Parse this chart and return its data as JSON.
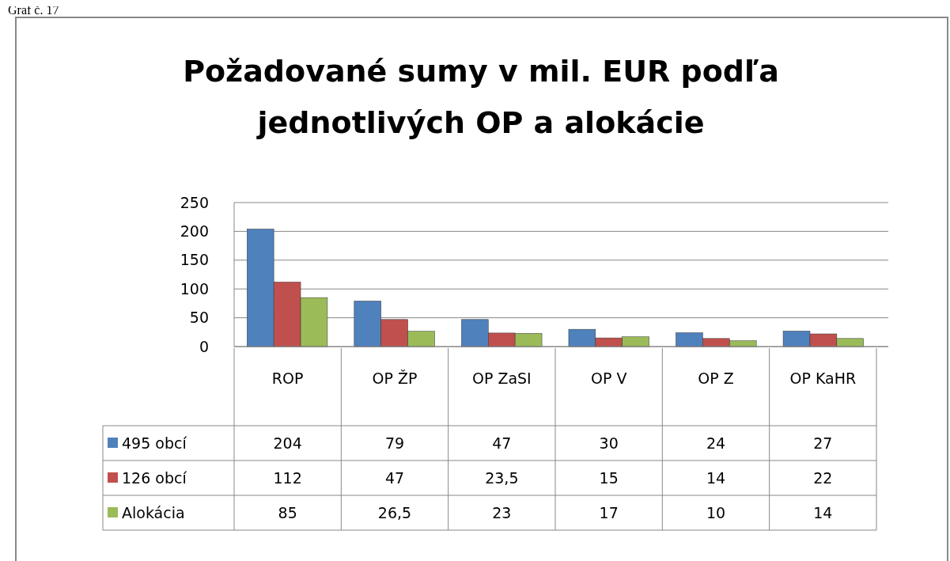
{
  "chart_data": {
    "type": "bar",
    "title": "Požadované sumy v mil. EUR podľa jednotlivých OP a alokácie",
    "annotations": [
      "Graf č. 17"
    ],
    "categories": [
      "ROP",
      "OP ŽP",
      "OP ZaSI",
      "OP V",
      "OP Z",
      "OP KaHR"
    ],
    "series": [
      {
        "name": "495 obcí",
        "color": "#4f81bd",
        "values": [
          204,
          79,
          47,
          30,
          24,
          27
        ],
        "value_labels": [
          "204",
          "79",
          "47",
          "30",
          "24",
          "27"
        ]
      },
      {
        "name": "126 obcí",
        "color": "#c0504d",
        "values": [
          112,
          47,
          23.5,
          15,
          14,
          22
        ],
        "value_labels": [
          "112",
          "47",
          "23,5",
          "15",
          "14",
          "22"
        ]
      },
      {
        "name": "Alokácia",
        "color": "#9bbb59",
        "values": [
          85,
          26.5,
          23,
          17,
          10,
          14
        ],
        "value_labels": [
          "85",
          "26,5",
          "23",
          "17",
          "10",
          "14"
        ]
      }
    ],
    "ylim": [
      0,
      250
    ],
    "yticks": [
      0,
      50,
      100,
      150,
      200,
      250
    ],
    "grid": "y",
    "legend": "bottom"
  }
}
